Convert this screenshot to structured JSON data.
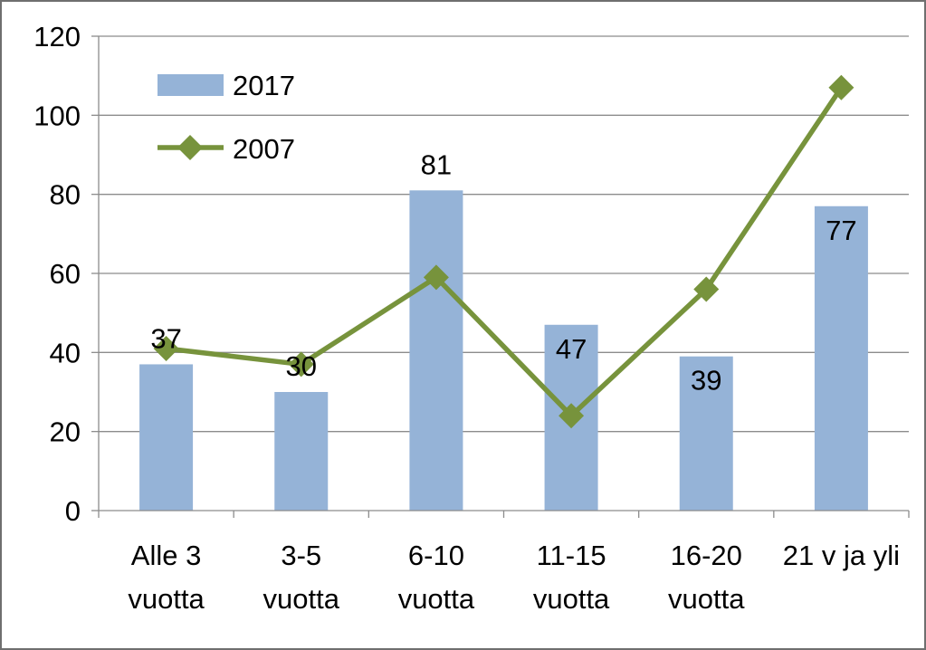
{
  "chart_data": {
    "type": "bar",
    "categories": [
      [
        "Alle 3",
        "vuotta"
      ],
      [
        "3-5",
        "vuotta"
      ],
      [
        "6-10",
        "vuotta"
      ],
      [
        "11-15",
        "vuotta"
      ],
      [
        "16-20",
        "vuotta"
      ],
      [
        "21 v ja yli"
      ]
    ],
    "ylim": [
      0,
      120
    ],
    "yticks": [
      "0",
      "20",
      "40",
      "60",
      "80",
      "100",
      "120"
    ],
    "grid": true,
    "legend_position": "top-left",
    "series": [
      {
        "name": "2017",
        "type": "bar",
        "color": "#95b3d7",
        "values": [
          37,
          30,
          81,
          47,
          39,
          77
        ],
        "data_labels": [
          "37",
          "30",
          "81",
          "47",
          "39",
          "77"
        ]
      },
      {
        "name": "2007",
        "type": "line",
        "color": "#77933c",
        "marker": "diamond",
        "values": [
          41,
          37,
          59,
          24,
          56,
          107
        ]
      }
    ]
  }
}
